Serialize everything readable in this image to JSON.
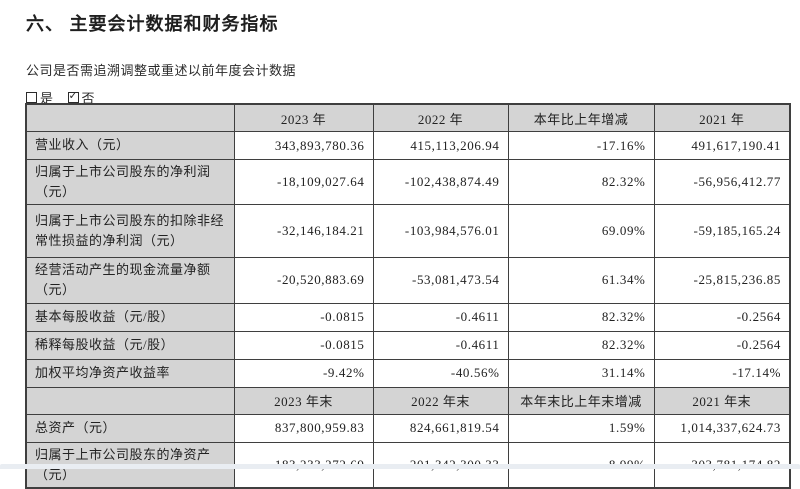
{
  "title": "六、 主要会计数据和财务指标",
  "restate_question": "公司是否需追溯调整或重述以前年度会计数据",
  "options": {
    "yes": "是",
    "no": "否",
    "yes_checked": false,
    "no_checked": true
  },
  "colors": {
    "header_cell_bg": "#d4d4d4",
    "table_border": "#3f3f3f",
    "text": "#2b2b2b",
    "page_bg": "#ffffff",
    "footer_strip": "#e9edf2"
  },
  "table": {
    "sections": [
      {
        "header": [
          "2023 年",
          "2022 年",
          "本年比上年增减",
          "2021 年"
        ],
        "rows": [
          {
            "label": "营业收入（元）",
            "size": "short",
            "values": [
              "343,893,780.36",
              "415,113,206.94",
              "-17.16%",
              "491,617,190.41"
            ]
          },
          {
            "label": "归属于上市公司股东的净利润（元）",
            "size": "tall",
            "values": [
              "-18,109,027.64",
              "-102,438,874.49",
              "82.32%",
              "-56,956,412.77"
            ]
          },
          {
            "label": "归属于上市公司股东的扣除非经常性损益的净利润（元）",
            "size": "xtall",
            "values": [
              "-32,146,184.21",
              "-103,984,576.01",
              "69.09%",
              "-59,185,165.24"
            ]
          },
          {
            "label": "经营活动产生的现金流量净额（元）",
            "size": "tall",
            "values": [
              "-20,520,883.69",
              "-53,081,473.54",
              "61.34%",
              "-25,815,236.85"
            ]
          },
          {
            "label": "基本每股收益（元/股）",
            "size": "short",
            "values": [
              "-0.0815",
              "-0.4611",
              "82.32%",
              "-0.2564"
            ]
          },
          {
            "label": "稀释每股收益（元/股）",
            "size": "short",
            "values": [
              "-0.0815",
              "-0.4611",
              "82.32%",
              "-0.2564"
            ]
          },
          {
            "label": "加权平均净资产收益率",
            "size": "short",
            "values": [
              "-9.42%",
              "-40.56%",
              "31.14%",
              "-17.14%"
            ]
          }
        ]
      },
      {
        "header": [
          "2023 年末",
          "2022 年末",
          "本年末比上年末增减",
          "2021 年末"
        ],
        "rows": [
          {
            "label": "总资产（元）",
            "size": "short",
            "values": [
              "837,800,959.83",
              "824,661,819.54",
              "1.59%",
              "1,014,337,624.73"
            ]
          },
          {
            "label": "归属于上市公司股东的净资产（元）",
            "size": "tall",
            "values": [
              "183,233,272.69",
              "201,342,300.33",
              "-8.99%",
              "303,781,174.82"
            ]
          }
        ]
      }
    ]
  }
}
